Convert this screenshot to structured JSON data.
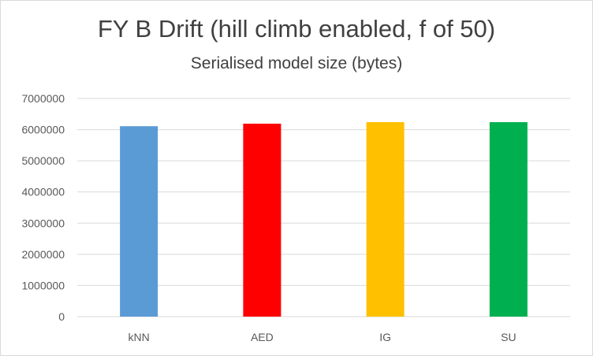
{
  "chart_data": {
    "type": "bar",
    "title": "FY B Drift (hill climb enabled, f of 50)",
    "subtitle": "Serialised model size (bytes)",
    "categories": [
      "kNN",
      "AED",
      "IG",
      "SU"
    ],
    "values": [
      6110000,
      6190000,
      6240000,
      6240000
    ],
    "colors": [
      "#5b9bd5",
      "#ff0000",
      "#ffc000",
      "#00b050"
    ],
    "xlabel": "",
    "ylabel": "",
    "ylim": [
      0,
      7000000
    ],
    "yticks": [
      "0",
      "1000000",
      "2000000",
      "3000000",
      "4000000",
      "5000000",
      "6000000",
      "7000000"
    ],
    "grid": true,
    "legend": "none"
  }
}
